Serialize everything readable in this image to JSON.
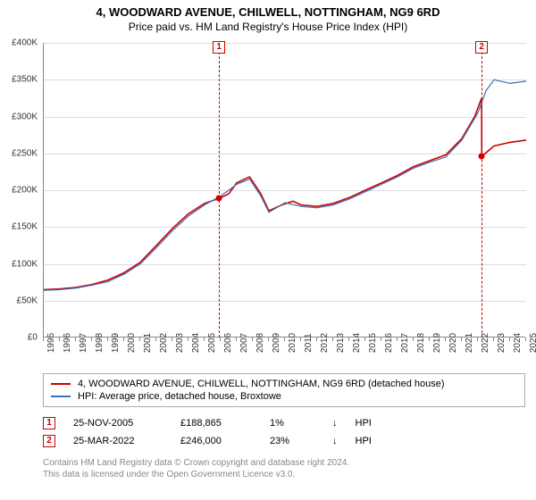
{
  "title": "4, WOODWARD AVENUE, CHILWELL, NOTTINGHAM, NG9 6RD",
  "subtitle": "Price paid vs. HM Land Registry's House Price Index (HPI)",
  "chart": {
    "type": "line",
    "ylabel_prefix": "£",
    "ylim": [
      0,
      400000
    ],
    "ytick_step": 50000,
    "yticks": [
      "£0",
      "£50K",
      "£100K",
      "£150K",
      "£200K",
      "£250K",
      "£300K",
      "£350K",
      "£400K"
    ],
    "xlim": [
      1995,
      2025
    ],
    "xticks": [
      1995,
      1996,
      1997,
      1998,
      1999,
      2000,
      2001,
      2002,
      2003,
      2004,
      2005,
      2006,
      2007,
      2008,
      2009,
      2010,
      2011,
      2012,
      2013,
      2014,
      2015,
      2016,
      2017,
      2018,
      2019,
      2020,
      2021,
      2022,
      2023,
      2024,
      2025
    ],
    "background_color": "#ffffff",
    "grid_color": "#dddddd",
    "series": [
      {
        "name": "price_paid",
        "color": "#cc0000",
        "width": 1.6,
        "points": [
          [
            1995,
            65000
          ],
          [
            1996,
            66000
          ],
          [
            1997,
            68000
          ],
          [
            1998,
            72000
          ],
          [
            1999,
            78000
          ],
          [
            2000,
            88000
          ],
          [
            2001,
            102000
          ],
          [
            2002,
            125000
          ],
          [
            2003,
            148000
          ],
          [
            2004,
            168000
          ],
          [
            2005,
            182000
          ],
          [
            2005.9,
            188865
          ],
          [
            2006.5,
            195000
          ],
          [
            2007,
            210000
          ],
          [
            2007.8,
            218000
          ],
          [
            2008.5,
            195000
          ],
          [
            2009,
            172000
          ],
          [
            2009.8,
            180000
          ],
          [
            2010.5,
            185000
          ],
          [
            2011,
            180000
          ],
          [
            2012,
            178000
          ],
          [
            2013,
            182000
          ],
          [
            2014,
            190000
          ],
          [
            2015,
            200000
          ],
          [
            2016,
            210000
          ],
          [
            2017,
            220000
          ],
          [
            2018,
            232000
          ],
          [
            2019,
            240000
          ],
          [
            2020,
            248000
          ],
          [
            2021,
            270000
          ],
          [
            2021.8,
            300000
          ],
          [
            2022.23,
            325000
          ],
          [
            2022.24,
            246000
          ],
          [
            2023,
            260000
          ],
          [
            2024,
            265000
          ],
          [
            2025,
            268000
          ]
        ]
      },
      {
        "name": "hpi",
        "color": "#3b6fb6",
        "width": 1.2,
        "points": [
          [
            1995,
            64000
          ],
          [
            1996,
            65000
          ],
          [
            1997,
            67000
          ],
          [
            1998,
            71000
          ],
          [
            1999,
            76000
          ],
          [
            2000,
            86000
          ],
          [
            2001,
            100000
          ],
          [
            2002,
            122000
          ],
          [
            2003,
            145000
          ],
          [
            2004,
            165000
          ],
          [
            2005,
            180000
          ],
          [
            2006,
            192000
          ],
          [
            2007,
            208000
          ],
          [
            2007.8,
            215000
          ],
          [
            2008.5,
            192000
          ],
          [
            2009,
            170000
          ],
          [
            2010,
            183000
          ],
          [
            2011,
            178000
          ],
          [
            2012,
            176000
          ],
          [
            2013,
            180000
          ],
          [
            2014,
            188000
          ],
          [
            2015,
            198000
          ],
          [
            2016,
            208000
          ],
          [
            2017,
            218000
          ],
          [
            2018,
            230000
          ],
          [
            2019,
            238000
          ],
          [
            2020,
            245000
          ],
          [
            2021,
            268000
          ],
          [
            2022,
            305000
          ],
          [
            2022.5,
            335000
          ],
          [
            2023,
            350000
          ],
          [
            2024,
            345000
          ],
          [
            2025,
            348000
          ]
        ]
      }
    ],
    "sale_markers": [
      {
        "idx": "1",
        "x": 2005.9,
        "y": 188865,
        "color": "#cc0000"
      },
      {
        "idx": "2",
        "x": 2022.23,
        "y": 246000,
        "color": "#cc0000"
      }
    ]
  },
  "legend": {
    "items": [
      {
        "color": "#cc0000",
        "label": "4, WOODWARD AVENUE, CHILWELL, NOTTINGHAM, NG9 6RD (detached house)"
      },
      {
        "color": "#3b6fb6",
        "label": "HPI: Average price, detached house, Broxtowe"
      }
    ]
  },
  "sales": [
    {
      "idx": "1",
      "date": "25-NOV-2005",
      "price": "£188,865",
      "pct": "1%",
      "arrow": "↓",
      "vs": "HPI"
    },
    {
      "idx": "2",
      "date": "25-MAR-2022",
      "price": "£246,000",
      "pct": "23%",
      "arrow": "↓",
      "vs": "HPI"
    }
  ],
  "footer": {
    "line1": "Contains HM Land Registry data © Crown copyright and database right 2024.",
    "line2": "This data is licensed under the Open Government Licence v3.0."
  }
}
